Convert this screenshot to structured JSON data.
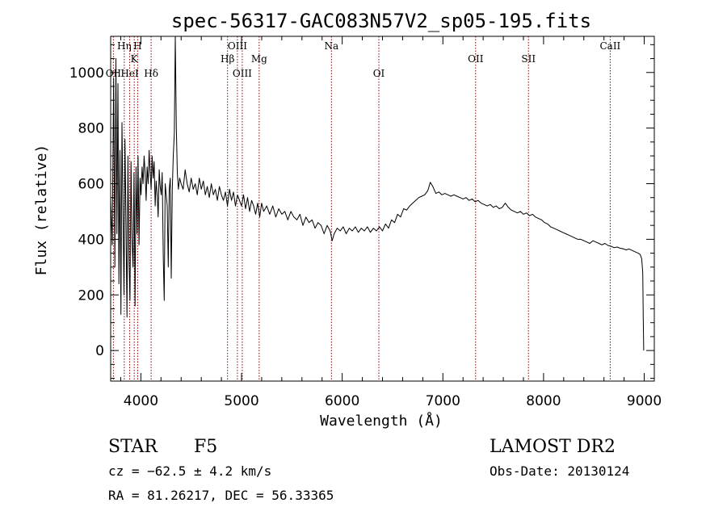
{
  "chart_data": {
    "type": "line",
    "title": "spec-56317-GAC083N57V2_sp05-195.fits",
    "xlabel": "Wavelength (Å)",
    "ylabel": "Flux (relative)",
    "xlim": [
      3700,
      9100
    ],
    "ylim": [
      -110,
      1130
    ],
    "xticks": [
      {
        "value": 4000,
        "label": "4000"
      },
      {
        "value": 5000,
        "label": "5000"
      },
      {
        "value": 6000,
        "label": "6000"
      },
      {
        "value": 7000,
        "label": "7000"
      },
      {
        "value": 8000,
        "label": "8000"
      },
      {
        "value": 9000,
        "label": "9000"
      }
    ],
    "yticks": [
      {
        "value": 0,
        "label": "0"
      },
      {
        "value": 200,
        "label": "200"
      },
      {
        "value": 400,
        "label": "400"
      },
      {
        "value": 600,
        "label": "600"
      },
      {
        "value": 800,
        "label": "800"
      },
      {
        "value": 1000,
        "label": "1000"
      }
    ],
    "grid": false,
    "line_color": "#000000",
    "marker_color": "#8b0000",
    "spectral_lines": [
      {
        "label": "OII",
        "wavelength": 3727,
        "level": 2
      },
      {
        "label": "Hη",
        "wavelength": 3835,
        "level": 0
      },
      {
        "label": "HeI",
        "wavelength": 3889,
        "level": 2
      },
      {
        "label": "K",
        "wavelength": 3934,
        "level": 1
      },
      {
        "label": "H",
        "wavelength": 3968,
        "level": 0
      },
      {
        "label": "Hδ",
        "wavelength": 4102,
        "level": 2
      },
      {
        "label": "Hβ",
        "wavelength": 4861,
        "level": 1
      },
      {
        "label": "OIII",
        "wavelength": 4959,
        "level": 0
      },
      {
        "label": "OIII",
        "wavelength": 5007,
        "level": 2
      },
      {
        "label": "Mg",
        "wavelength": 5175,
        "level": 1
      },
      {
        "label": "Na",
        "wavelength": 5893,
        "level": 0
      },
      {
        "label": "OI",
        "wavelength": 6364,
        "level": 2
      },
      {
        "label": "OII",
        "wavelength": 7325,
        "level": 1
      },
      {
        "label": "SII",
        "wavelength": 7850,
        "level": 1
      },
      {
        "label": "CaII",
        "wavelength": 8662,
        "level": 0
      }
    ],
    "series": [
      {
        "points": [
          [
            3700,
            550
          ],
          [
            3715,
            380
          ],
          [
            3730,
            980
          ],
          [
            3742,
            300
          ],
          [
            3752,
            1050
          ],
          [
            3762,
            420
          ],
          [
            3772,
            960
          ],
          [
            3782,
            240
          ],
          [
            3792,
            720
          ],
          [
            3802,
            130
          ],
          [
            3812,
            820
          ],
          [
            3822,
            520
          ],
          [
            3832,
            200
          ],
          [
            3842,
            760
          ],
          [
            3852,
            480
          ],
          [
            3862,
            120
          ],
          [
            3872,
            700
          ],
          [
            3882,
            320
          ],
          [
            3892,
            180
          ],
          [
            3902,
            680
          ],
          [
            3912,
            400
          ],
          [
            3922,
            300
          ],
          [
            3932,
            640
          ],
          [
            3942,
            160
          ],
          [
            3952,
            660
          ],
          [
            3962,
            420
          ],
          [
            3972,
            700
          ],
          [
            3982,
            380
          ],
          [
            3992,
            620
          ],
          [
            4002,
            560
          ],
          [
            4012,
            660
          ],
          [
            4022,
            600
          ],
          [
            4032,
            700
          ],
          [
            4042,
            640
          ],
          [
            4052,
            540
          ],
          [
            4062,
            660
          ],
          [
            4072,
            600
          ],
          [
            4082,
            720
          ],
          [
            4092,
            640
          ],
          [
            4102,
            580
          ],
          [
            4112,
            700
          ],
          [
            4122,
            620
          ],
          [
            4132,
            680
          ],
          [
            4142,
            520
          ],
          [
            4152,
            610
          ],
          [
            4162,
            560
          ],
          [
            4172,
            480
          ],
          [
            4182,
            650
          ],
          [
            4192,
            590
          ],
          [
            4202,
            560
          ],
          [
            4212,
            640
          ],
          [
            4222,
            340
          ],
          [
            4232,
            180
          ],
          [
            4242,
            600
          ],
          [
            4252,
            560
          ],
          [
            4262,
            520
          ],
          [
            4272,
            300
          ],
          [
            4282,
            580
          ],
          [
            4292,
            620
          ],
          [
            4302,
            260
          ],
          [
            4312,
            580
          ],
          [
            4322,
            700
          ],
          [
            4332,
            780
          ],
          [
            4342,
            1130
          ],
          [
            4352,
            800
          ],
          [
            4362,
            640
          ],
          [
            4372,
            580
          ],
          [
            4385,
            620
          ],
          [
            4400,
            600
          ],
          [
            4420,
            580
          ],
          [
            4440,
            650
          ],
          [
            4460,
            600
          ],
          [
            4480,
            570
          ],
          [
            4500,
            620
          ],
          [
            4520,
            580
          ],
          [
            4540,
            600
          ],
          [
            4560,
            560
          ],
          [
            4580,
            620
          ],
          [
            4600,
            580
          ],
          [
            4620,
            610
          ],
          [
            4640,
            560
          ],
          [
            4660,
            590
          ],
          [
            4680,
            550
          ],
          [
            4700,
            600
          ],
          [
            4720,
            560
          ],
          [
            4740,
            580
          ],
          [
            4760,
            540
          ],
          [
            4780,
            590
          ],
          [
            4800,
            560
          ],
          [
            4820,
            540
          ],
          [
            4840,
            570
          ],
          [
            4860,
            520
          ],
          [
            4880,
            580
          ],
          [
            4900,
            540
          ],
          [
            4920,
            570
          ],
          [
            4940,
            520
          ],
          [
            4960,
            560
          ],
          [
            4980,
            540
          ],
          [
            5000,
            520
          ],
          [
            5020,
            560
          ],
          [
            5040,
            510
          ],
          [
            5060,
            550
          ],
          [
            5080,
            500
          ],
          [
            5100,
            540
          ],
          [
            5120,
            520
          ],
          [
            5140,
            490
          ],
          [
            5160,
            530
          ],
          [
            5180,
            480
          ],
          [
            5200,
            530
          ],
          [
            5220,
            500
          ],
          [
            5250,
            520
          ],
          [
            5280,
            490
          ],
          [
            5310,
            520
          ],
          [
            5340,
            480
          ],
          [
            5370,
            510
          ],
          [
            5400,
            490
          ],
          [
            5430,
            500
          ],
          [
            5460,
            470
          ],
          [
            5490,
            500
          ],
          [
            5520,
            480
          ],
          [
            5550,
            470
          ],
          [
            5580,
            490
          ],
          [
            5610,
            450
          ],
          [
            5640,
            480
          ],
          [
            5670,
            460
          ],
          [
            5700,
            470
          ],
          [
            5730,
            440
          ],
          [
            5760,
            460
          ],
          [
            5790,
            450
          ],
          [
            5820,
            420
          ],
          [
            5850,
            450
          ],
          [
            5880,
            430
          ],
          [
            5900,
            395
          ],
          [
            5920,
            420
          ],
          [
            5950,
            440
          ],
          [
            5980,
            430
          ],
          [
            6010,
            445
          ],
          [
            6040,
            420
          ],
          [
            6070,
            440
          ],
          [
            6100,
            430
          ],
          [
            6130,
            445
          ],
          [
            6160,
            425
          ],
          [
            6190,
            440
          ],
          [
            6220,
            430
          ],
          [
            6250,
            445
          ],
          [
            6280,
            425
          ],
          [
            6310,
            440
          ],
          [
            6340,
            430
          ],
          [
            6370,
            445
          ],
          [
            6400,
            430
          ],
          [
            6430,
            455
          ],
          [
            6460,
            440
          ],
          [
            6490,
            470
          ],
          [
            6520,
            460
          ],
          [
            6550,
            490
          ],
          [
            6580,
            480
          ],
          [
            6610,
            510
          ],
          [
            6640,
            505
          ],
          [
            6670,
            520
          ],
          [
            6700,
            530
          ],
          [
            6730,
            540
          ],
          [
            6760,
            550
          ],
          [
            6790,
            555
          ],
          [
            6820,
            560
          ],
          [
            6850,
            575
          ],
          [
            6875,
            605
          ],
          [
            6900,
            590
          ],
          [
            6930,
            565
          ],
          [
            6960,
            570
          ],
          [
            6990,
            560
          ],
          [
            7020,
            565
          ],
          [
            7050,
            560
          ],
          [
            7080,
            555
          ],
          [
            7110,
            560
          ],
          [
            7140,
            555
          ],
          [
            7170,
            550
          ],
          [
            7200,
            545
          ],
          [
            7230,
            550
          ],
          [
            7260,
            540
          ],
          [
            7290,
            545
          ],
          [
            7320,
            535
          ],
          [
            7350,
            540
          ],
          [
            7380,
            530
          ],
          [
            7410,
            525
          ],
          [
            7440,
            520
          ],
          [
            7470,
            525
          ],
          [
            7500,
            515
          ],
          [
            7530,
            520
          ],
          [
            7560,
            510
          ],
          [
            7590,
            515
          ],
          [
            7620,
            530
          ],
          [
            7650,
            515
          ],
          [
            7680,
            505
          ],
          [
            7710,
            500
          ],
          [
            7740,
            495
          ],
          [
            7770,
            500
          ],
          [
            7800,
            490
          ],
          [
            7830,
            495
          ],
          [
            7860,
            485
          ],
          [
            7890,
            490
          ],
          [
            7920,
            480
          ],
          [
            7950,
            475
          ],
          [
            7980,
            470
          ],
          [
            8010,
            460
          ],
          [
            8040,
            455
          ],
          [
            8070,
            445
          ],
          [
            8100,
            440
          ],
          [
            8130,
            435
          ],
          [
            8160,
            430
          ],
          [
            8190,
            425
          ],
          [
            8220,
            420
          ],
          [
            8250,
            415
          ],
          [
            8280,
            410
          ],
          [
            8310,
            405
          ],
          [
            8340,
            400
          ],
          [
            8370,
            400
          ],
          [
            8400,
            395
          ],
          [
            8430,
            390
          ],
          [
            8460,
            385
          ],
          [
            8490,
            395
          ],
          [
            8520,
            390
          ],
          [
            8550,
            385
          ],
          [
            8580,
            380
          ],
          [
            8610,
            385
          ],
          [
            8640,
            378
          ],
          [
            8670,
            375
          ],
          [
            8700,
            370
          ],
          [
            8730,
            372
          ],
          [
            8760,
            368
          ],
          [
            8790,
            366
          ],
          [
            8820,
            362
          ],
          [
            8850,
            365
          ],
          [
            8880,
            360
          ],
          [
            8910,
            355
          ],
          [
            8940,
            350
          ],
          [
            8960,
            345
          ],
          [
            8975,
            330
          ],
          [
            8985,
            280
          ],
          [
            8990,
            120
          ],
          [
            8995,
            0
          ]
        ]
      }
    ]
  },
  "info": {
    "class": "STAR",
    "subclass": "F5",
    "survey": "LAMOST DR2",
    "cz": "cz = −62.5 ± 4.2 km/s",
    "obs_date": "Obs-Date: 20130124",
    "coords": "RA =  81.26217, DEC =  56.33365"
  }
}
